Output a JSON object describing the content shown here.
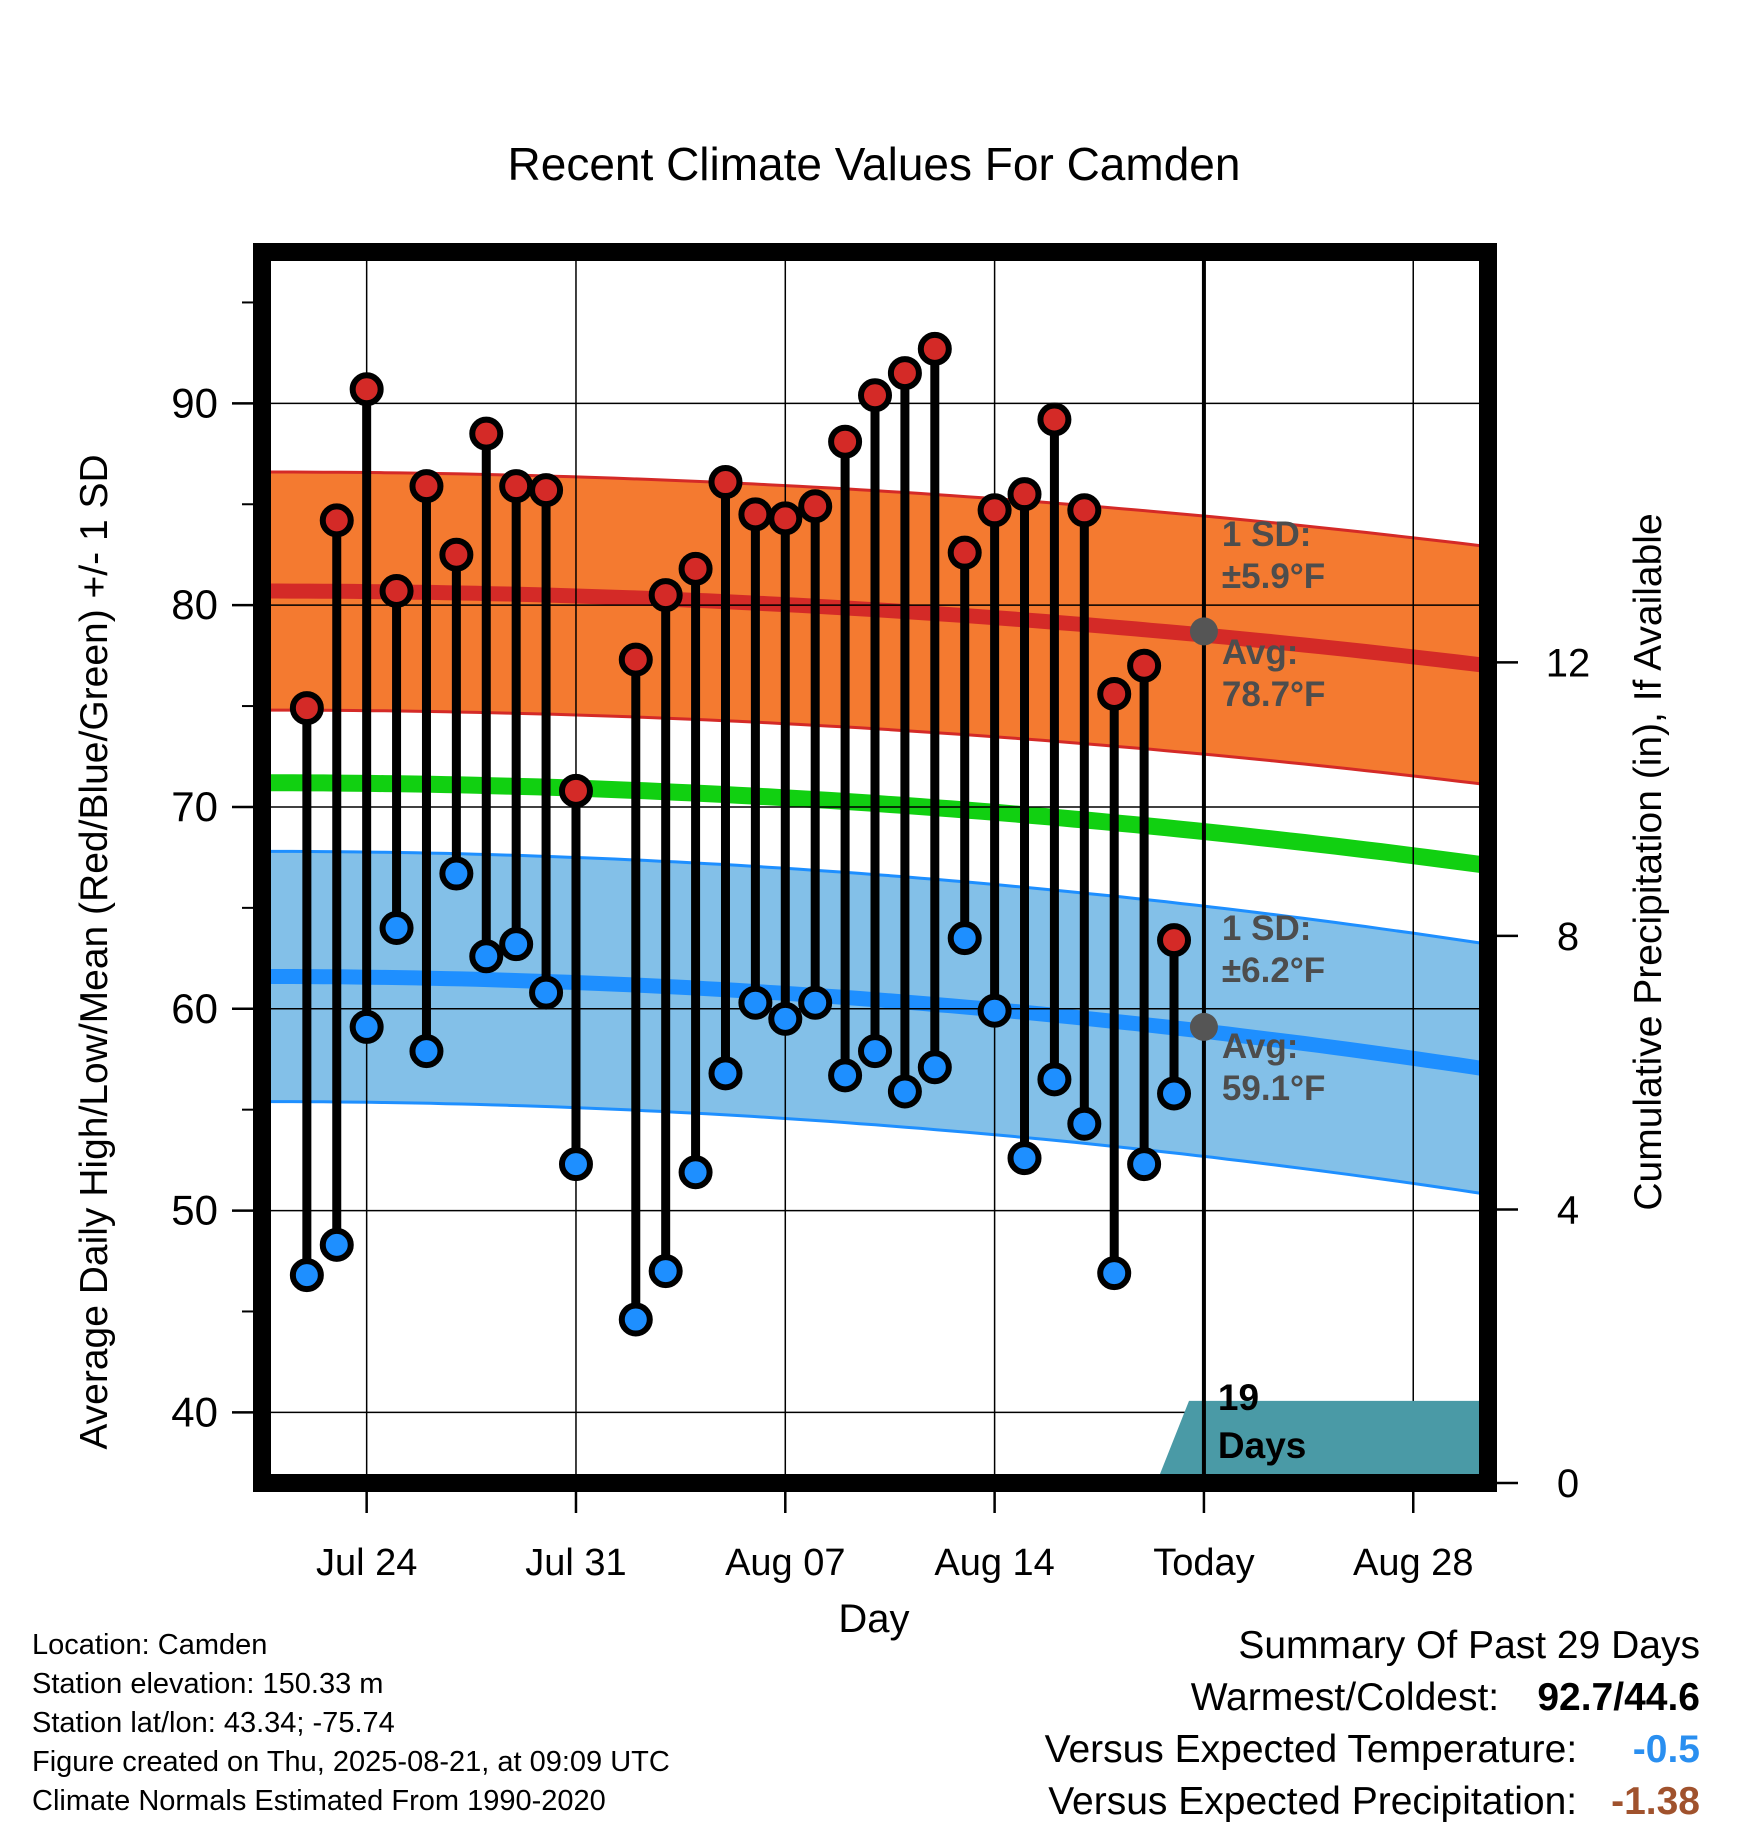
{
  "chart_data": {
    "type": "line",
    "title": "Recent Climate Values For Camden",
    "xlabel": "Day",
    "ylabel": "Average Daily High/Low/Mean (Red/Blue/Green) +/- 1 SD",
    "y2label": "Cumulative Precipitation (in), If Available",
    "ylim": [
      36.5,
      97.5
    ],
    "y_ticks": [
      40,
      50,
      60,
      70,
      80,
      90
    ],
    "y2lim": [
      0,
      18
    ],
    "y2_ticks": [
      0,
      4,
      8,
      12
    ],
    "x_range_day_index": [
      -1.5,
      39.5
    ],
    "x_ticks": [
      {
        "day_index": 2,
        "label": "Jul 24"
      },
      {
        "day_index": 9,
        "label": "Jul 31"
      },
      {
        "day_index": 16,
        "label": "Aug 07"
      },
      {
        "day_index": 23,
        "label": "Aug 14"
      },
      {
        "day_index": 30,
        "label": "Today"
      },
      {
        "day_index": 37,
        "label": "Aug 28"
      }
    ],
    "day_index_origin": "Jul 22",
    "grid": true,
    "daily_highs": [
      74.9,
      84.2,
      90.7,
      80.7,
      85.9,
      82.5,
      88.5,
      85.9,
      85.7,
      70.8,
      null,
      77.3,
      80.5,
      81.8,
      86.1,
      84.5,
      84.3,
      84.9,
      88.1,
      90.4,
      91.5,
      92.7,
      82.6,
      84.7,
      85.5,
      89.2,
      84.7,
      75.6,
      77.0,
      63.4
    ],
    "daily_lows": [
      46.8,
      48.3,
      59.1,
      64.0,
      57.9,
      66.7,
      62.6,
      63.2,
      60.8,
      52.3,
      null,
      44.6,
      47.0,
      51.9,
      56.8,
      60.3,
      59.5,
      60.3,
      56.7,
      57.9,
      55.9,
      57.1,
      63.5,
      59.9,
      52.6,
      56.5,
      54.3,
      46.9,
      52.3,
      55.8
    ],
    "normal_high": {
      "start": 80.7,
      "end": 77.0,
      "sd": 5.9
    },
    "normal_low": {
      "start": 61.6,
      "end": 57.0,
      "sd": 6.2
    },
    "normal_mean": {
      "start": 71.2,
      "end": 67.1
    },
    "precipitation": {
      "day_index": [
        -1.5,
        21.5,
        28.5,
        29.5,
        39.5
      ],
      "values": [
        0,
        0.1,
        0.1,
        1.2,
        1.2
      ]
    },
    "annotations": {
      "today_high_label": [
        "1 SD:",
        "±5.9°F",
        "Avg:",
        "78.7°F"
      ],
      "today_low_label": [
        "1 SD:",
        "±6.2°F",
        "Avg:",
        "59.1°F"
      ],
      "today_high_avg": 78.7,
      "today_low_avg": 59.1,
      "days_label": [
        "19",
        "Days"
      ]
    },
    "colors": {
      "high_band": "#f47a30",
      "high_line": "#d42a27",
      "low_band": "#83c0e8",
      "low_line": "#1e8fff",
      "mean_line": "#11d011",
      "high_dot": "#d42a27",
      "low_dot": "#1e8fff",
      "precip_fill": "#4a9aa6",
      "today_dot": "#555555",
      "annotation_text": "#4d4d4d"
    }
  },
  "info": {
    "location": "Location: Camden",
    "elevation": "Station elevation: 150.33 m",
    "latlon": "Station lat/lon: 43.34; -75.74",
    "created": "Figure created on Thu, 2025-08-21, at 09:09 UTC",
    "normals": "Climate Normals Estimated From 1990-2020"
  },
  "summary": {
    "title": "Summary Of Past 29 Days",
    "warm_cold_label": "Warmest/Coldest:",
    "warm_cold_value": "92.7/44.6",
    "temp_label": "Versus Expected Temperature:",
    "temp_value": "-0.5",
    "temp_color": "#2a8ff0",
    "precip_label": "Versus Expected Precipitation:",
    "precip_value": "-1.38",
    "precip_color": "#a0522d"
  }
}
